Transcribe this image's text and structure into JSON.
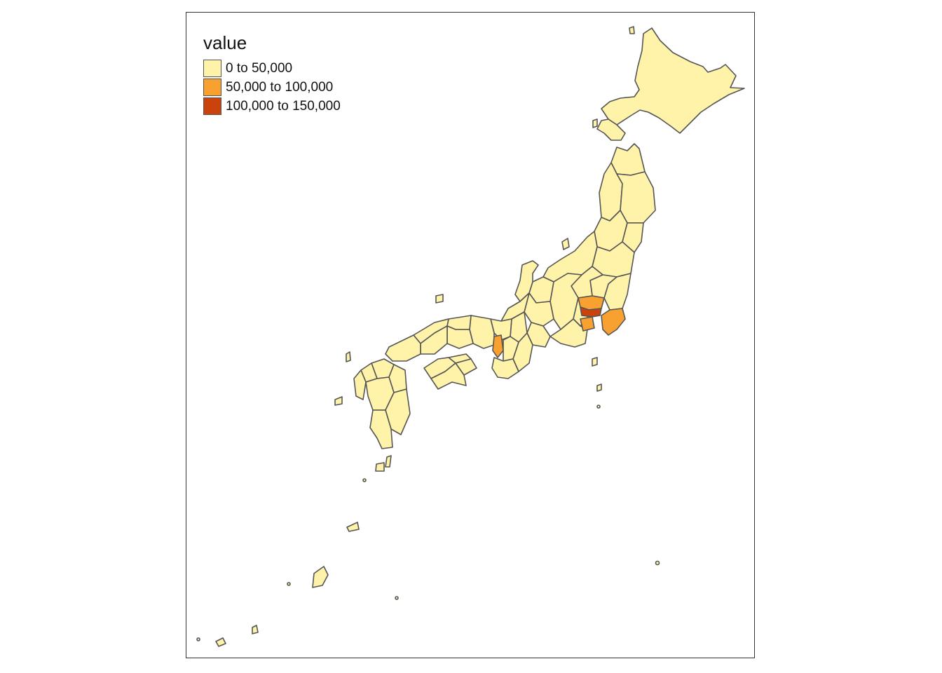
{
  "map": {
    "legend": {
      "title": "value",
      "items": [
        {
          "label": "0 to 50,000",
          "color": "#FFF3AA"
        },
        {
          "label": "50,000 to 100,000",
          "color": "#F8A131"
        },
        {
          "label": "100,000 to 150,000",
          "color": "#CB430C"
        }
      ]
    },
    "colors": {
      "border": "#555555",
      "frame": "#333333"
    }
  }
}
